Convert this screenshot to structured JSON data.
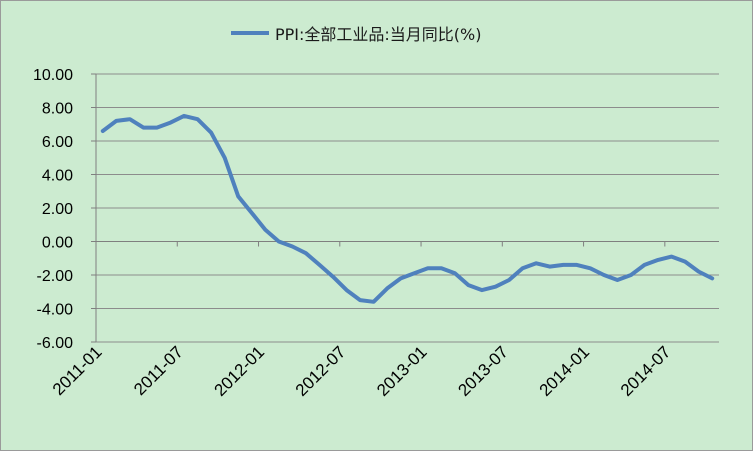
{
  "chart_data": {
    "type": "line",
    "title": "",
    "xlabel": "",
    "ylabel": "",
    "ylim": [
      -6,
      10
    ],
    "yticks": [
      "10.00",
      "8.00",
      "6.00",
      "4.00",
      "2.00",
      "0.00",
      "-2.00",
      "-4.00",
      "-6.00"
    ],
    "x_tick_labels": [
      "2011-01",
      "2011-07",
      "2012-01",
      "2012-07",
      "2013-01",
      "2013-07",
      "2014-01",
      "2014-07"
    ],
    "grid": "horizontal",
    "legend_position": "top-center",
    "series_color": "#4f81bd",
    "plot_background": "#ccebd0",
    "x": [
      "2011-01",
      "2011-02",
      "2011-03",
      "2011-04",
      "2011-05",
      "2011-06",
      "2011-07",
      "2011-08",
      "2011-09",
      "2011-10",
      "2011-11",
      "2011-12",
      "2012-01",
      "2012-02",
      "2012-03",
      "2012-04",
      "2012-05",
      "2012-06",
      "2012-07",
      "2012-08",
      "2012-09",
      "2012-10",
      "2012-11",
      "2012-12",
      "2013-01",
      "2013-02",
      "2013-03",
      "2013-04",
      "2013-05",
      "2013-06",
      "2013-07",
      "2013-08",
      "2013-09",
      "2013-10",
      "2013-11",
      "2013-12",
      "2014-01",
      "2014-02",
      "2014-03",
      "2014-04",
      "2014-05",
      "2014-06",
      "2014-07",
      "2014-08",
      "2014-09",
      "2014-10"
    ],
    "series": [
      {
        "name": "PPI:全部工业品:当月同比(%)",
        "values": [
          6.6,
          7.2,
          7.3,
          6.8,
          6.8,
          7.1,
          7.5,
          7.3,
          6.5,
          5.0,
          2.7,
          1.7,
          0.7,
          0.0,
          -0.3,
          -0.7,
          -1.4,
          -2.1,
          -2.9,
          -3.5,
          -3.6,
          -2.8,
          -2.2,
          -1.9,
          -1.6,
          -1.6,
          -1.9,
          -2.6,
          -2.9,
          -2.7,
          -2.3,
          -1.6,
          -1.3,
          -1.5,
          -1.4,
          -1.4,
          -1.6,
          -2.0,
          -2.3,
          -2.0,
          -1.4,
          -1.1,
          -0.9,
          -1.2,
          -1.8,
          -2.2
        ]
      }
    ]
  }
}
